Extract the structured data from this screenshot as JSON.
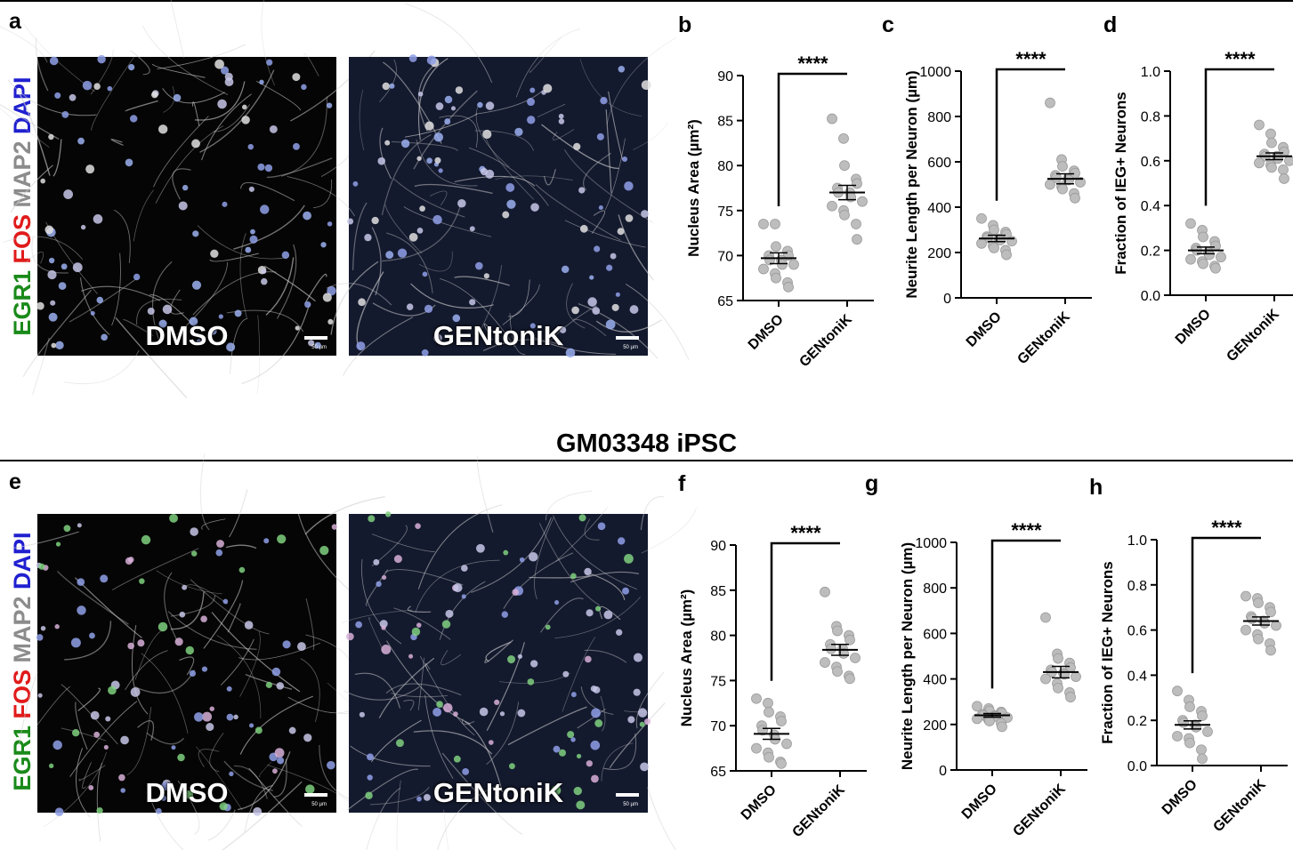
{
  "figure_title": "GM03348 iPSC",
  "panel_labels": [
    "a",
    "b",
    "c",
    "d",
    "e",
    "f",
    "g",
    "h"
  ],
  "stain_labels": [
    {
      "text": "EGR1",
      "color": "#1a8a1a"
    },
    {
      "text": "FOS",
      "color": "#e01b1b"
    },
    {
      "text": "MAP2",
      "color": "#8c8c8c"
    },
    {
      "text": "DAPI",
      "color": "#2020d0"
    }
  ],
  "micrographs": [
    {
      "condition": "DMSO",
      "scale": "50 µm"
    },
    {
      "condition": "GENtoniK",
      "scale": "50 µm"
    },
    {
      "condition": "DMSO",
      "scale": "50 µm"
    },
    {
      "condition": "GENtoniK",
      "scale": "50 µm"
    }
  ],
  "colors": {
    "point": "#bdbdbd",
    "point_edge": "#9a9a9a",
    "line": "#000000"
  },
  "chart_data": [
    {
      "panel": "b",
      "type": "scatter",
      "ylabel": "Nucleus Area (µm²)",
      "ylim": [
        65,
        90
      ],
      "yticks": [
        65,
        70,
        75,
        80,
        85,
        90
      ],
      "categories": [
        "DMSO",
        "GENtoniK"
      ],
      "significance": "****",
      "means": [
        69.7,
        77.0
      ],
      "sem": [
        0.6,
        0.8
      ],
      "series": [
        {
          "values": [
            73.5,
            73.5,
            71.0,
            70.5,
            70.0,
            70.0,
            69.5,
            69.5,
            69.0,
            69.0,
            68.5,
            68.0,
            67.5,
            67.0,
            66.5
          ]
        },
        {
          "values": [
            85.2,
            83.0,
            80.0,
            78.5,
            78.0,
            77.5,
            77.0,
            77.0,
            76.5,
            76.0,
            75.5,
            75.0,
            74.5,
            73.5,
            71.8
          ]
        }
      ]
    },
    {
      "panel": "c",
      "type": "scatter",
      "ylabel": "Neurite Length per Neuron (µm)",
      "ylim": [
        0,
        1000
      ],
      "yticks": [
        0,
        200,
        400,
        600,
        800,
        1000
      ],
      "categories": [
        "DMSO",
        "GENtoniK"
      ],
      "significance": "****",
      "means": [
        262,
        525
      ],
      "sem": [
        14,
        22
      ],
      "series": [
        {
          "values": [
            350,
            320,
            300,
            290,
            280,
            270,
            265,
            260,
            255,
            250,
            240,
            230,
            220,
            210,
            190
          ]
        },
        {
          "values": [
            860,
            610,
            580,
            560,
            550,
            540,
            530,
            525,
            520,
            510,
            500,
            490,
            480,
            460,
            440
          ]
        }
      ]
    },
    {
      "panel": "d",
      "type": "scatter",
      "ylabel": "Fraction of IEG+ Neurons",
      "ylim": [
        0,
        1
      ],
      "yticks": [
        0.0,
        0.2,
        0.4,
        0.6,
        0.8,
        1.0
      ],
      "categories": [
        "DMSO",
        "GENtoniK"
      ],
      "significance": "****",
      "means": [
        0.2,
        0.62
      ],
      "sem": [
        0.015,
        0.015
      ],
      "series": [
        {
          "values": [
            0.32,
            0.29,
            0.26,
            0.24,
            0.22,
            0.21,
            0.2,
            0.19,
            0.18,
            0.17,
            0.16,
            0.15,
            0.14,
            0.13,
            0.12
          ]
        },
        {
          "values": [
            0.76,
            0.72,
            0.68,
            0.66,
            0.64,
            0.63,
            0.62,
            0.62,
            0.61,
            0.6,
            0.59,
            0.58,
            0.57,
            0.56,
            0.52
          ]
        }
      ]
    },
    {
      "panel": "f",
      "type": "scatter",
      "ylabel": "Nucleus Area (µm²)",
      "ylim": [
        65,
        90
      ],
      "yticks": [
        65,
        70,
        75,
        80,
        85,
        90
      ],
      "categories": [
        "DMSO",
        "GENtoniK"
      ],
      "significance": "****",
      "means": [
        69.1,
        78.4
      ],
      "sem": [
        0.6,
        0.6
      ],
      "series": [
        {
          "values": [
            73.0,
            72.5,
            71.5,
            71.0,
            70.5,
            70.0,
            69.5,
            69.0,
            68.5,
            68.0,
            67.5,
            67.0,
            66.5,
            66.0,
            65.8
          ]
        },
        {
          "values": [
            84.8,
            81.0,
            80.5,
            80.0,
            79.5,
            79.0,
            78.5,
            78.5,
            78.0,
            77.5,
            77.0,
            76.5,
            76.0,
            75.5,
            75.2
          ]
        }
      ]
    },
    {
      "panel": "g",
      "type": "scatter",
      "ylabel": "Neurite Length per Neuron (µm)",
      "ylim": [
        0,
        1000
      ],
      "yticks": [
        0,
        200,
        400,
        600,
        800,
        1000
      ],
      "categories": [
        "DMSO",
        "GENtoniK"
      ],
      "significance": "****",
      "means": [
        240,
        430
      ],
      "sem": [
        8,
        25
      ],
      "series": [
        {
          "values": [
            280,
            270,
            260,
            255,
            250,
            245,
            240,
            238,
            235,
            230,
            225,
            220,
            215,
            205,
            190
          ]
        },
        {
          "values": [
            670,
            510,
            490,
            470,
            450,
            440,
            430,
            425,
            420,
            410,
            400,
            380,
            360,
            340,
            320
          ]
        }
      ]
    },
    {
      "panel": "h",
      "type": "scatter",
      "ylabel": "Fraction of IEG+ Neurons",
      "ylim": [
        0,
        1
      ],
      "yticks": [
        0.0,
        0.2,
        0.4,
        0.6,
        0.8,
        1.0
      ],
      "categories": [
        "DMSO",
        "GENtoniK"
      ],
      "significance": "****",
      "means": [
        0.18,
        0.64
      ],
      "sem": [
        0.018,
        0.018
      ],
      "series": [
        {
          "values": [
            0.33,
            0.29,
            0.26,
            0.24,
            0.22,
            0.2,
            0.19,
            0.18,
            0.17,
            0.15,
            0.13,
            0.12,
            0.1,
            0.07,
            0.03
          ]
        },
        {
          "values": [
            0.75,
            0.74,
            0.72,
            0.7,
            0.68,
            0.66,
            0.65,
            0.64,
            0.63,
            0.62,
            0.6,
            0.58,
            0.56,
            0.54,
            0.51
          ]
        }
      ]
    }
  ]
}
